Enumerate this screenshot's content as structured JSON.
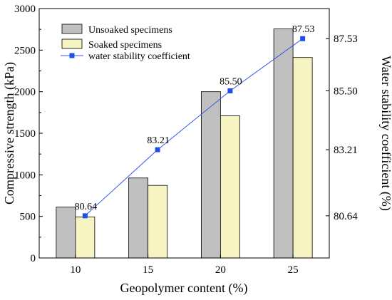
{
  "chart_data": {
    "type": "bar",
    "xlabel": "Geopolymer content (%)",
    "ylabel": "Compressive strength (kPa)",
    "y2label": "Water stability coefficient (%)",
    "categories": [
      "10",
      "15",
      "20",
      "25"
    ],
    "ylim": [
      0,
      3000
    ],
    "yticks": [
      "0",
      "500",
      "1000",
      "1500",
      "2000",
      "2500",
      "3000"
    ],
    "y2lim": [
      79.0,
      88.7
    ],
    "y2ticks": [
      "80.64",
      "83.21",
      "85.50",
      "87.53"
    ],
    "series": [
      {
        "name": "Unsoaked specimens",
        "kind": "bar",
        "color": "#c0c0c0",
        "values": [
          612,
          962,
          2000,
          2755
        ]
      },
      {
        "name": "Soaked specimens",
        "kind": "bar",
        "color": "#f7f4c3",
        "values": [
          494,
          873,
          1710,
          2411
        ]
      },
      {
        "name": "water stability coefficient",
        "kind": "line",
        "axis": "right",
        "color": "#3355ee",
        "marker_color": "#1f4fe6",
        "values": [
          80.64,
          83.21,
          85.5,
          87.53
        ],
        "labels": [
          "80.64",
          "83.21",
          "85.50",
          "87.53"
        ]
      }
    ],
    "legend": "top-left",
    "grid": false
  }
}
